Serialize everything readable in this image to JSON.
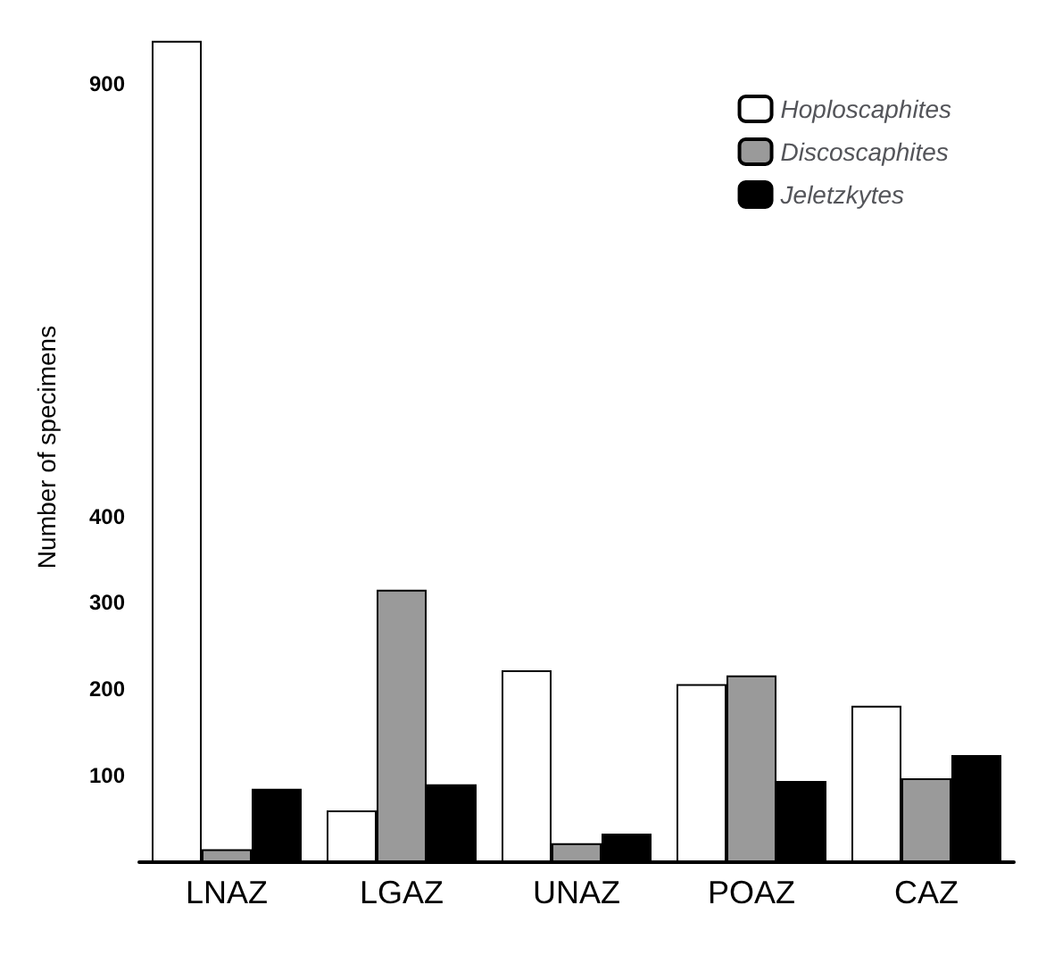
{
  "chart_data": {
    "type": "bar",
    "ylabel": "Number of specimens",
    "categories": [
      "LNAZ",
      "LGAZ",
      "UNAZ",
      "POAZ",
      "CAZ"
    ],
    "series": [
      {
        "name": "Hoploscaphites",
        "color": "#ffffff",
        "values": [
          950,
          60,
          222,
          206,
          181
        ]
      },
      {
        "name": "Discoscaphites",
        "color": "#9a9a9a",
        "values": [
          15,
          315,
          22,
          216,
          97
        ]
      },
      {
        "name": "Jeletzkytes",
        "color": "#000000",
        "values": [
          85,
          90,
          33,
          94,
          124
        ]
      }
    ],
    "ylim": [
      0,
      960
    ],
    "yticks": [
      100,
      200,
      300,
      400,
      900
    ],
    "grid": false,
    "legend": "top right"
  }
}
